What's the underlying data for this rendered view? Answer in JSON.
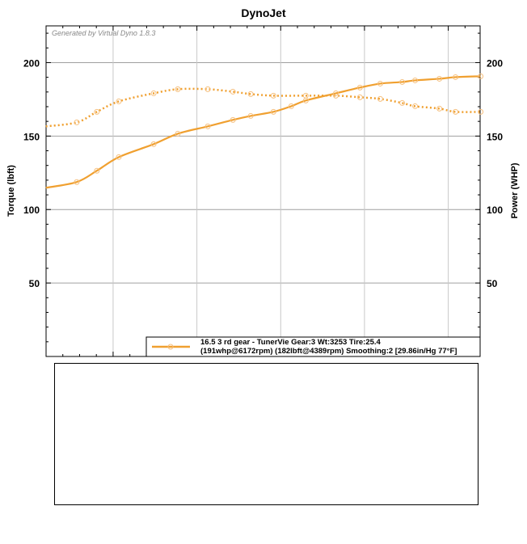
{
  "chart_data": {
    "type": "line",
    "title": "DynoJet",
    "watermark": "Generated by Virtual Dyno 1.8.3",
    "ylabel_left": "Torque (lbft)",
    "ylabel_right": "Power (WHP)",
    "ylim": [
      0,
      225
    ],
    "xlim": [
      3600,
      6190
    ],
    "yticks": [
      50,
      100,
      150,
      200
    ],
    "xgrid": [
      4000,
      4500,
      5000,
      5500,
      6000
    ],
    "grid": true,
    "legend_placement": "bottom-right",
    "color": "#f0a030",
    "legend": {
      "line1": "16.5 3 rd gear - TunerVie Gear:3 Wt:3253 Tire:25.4",
      "line2": "(191whp@6172rpm) (182lbft@4389rpm) Smoothing:2 [29.86in/Hg 77°F]"
    },
    "series": [
      {
        "style": "dotted",
        "axis": "left",
        "x": [
          3599,
          3783,
          3903,
          4034,
          4242,
          4386,
          4565,
          4715,
          4821,
          4957,
          5150,
          5329,
          5473,
          5594,
          5725,
          5802,
          5947,
          6043,
          6193
        ],
        "y": [
          156.6,
          159.3,
          166.5,
          173.6,
          179.1,
          181.9,
          181.9,
          180.2,
          178.6,
          177.5,
          177.5,
          177.5,
          176.4,
          175.3,
          172.5,
          170.3,
          168.7,
          166.5,
          166.5
        ]
      },
      {
        "style": "solid",
        "axis": "right",
        "x": [
          3599,
          3783,
          3903,
          4034,
          4242,
          4386,
          4565,
          4715,
          4821,
          4957,
          5063,
          5150,
          5329,
          5473,
          5594,
          5725,
          5802,
          5947,
          6043,
          6193
        ],
        "y": [
          114.8,
          118.7,
          126.4,
          135.7,
          144.5,
          151.6,
          156.6,
          161,
          163.7,
          166.5,
          170.3,
          174.2,
          179.1,
          183,
          185.7,
          186.8,
          187.9,
          189,
          190.1,
          190.7
        ]
      }
    ]
  }
}
